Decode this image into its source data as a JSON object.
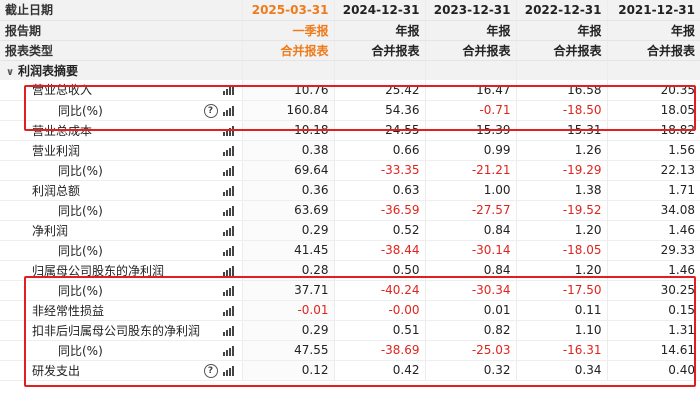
{
  "header": {
    "rows": [
      {
        "label": "截止日期",
        "values": [
          "2025-03-31",
          "2024-12-31",
          "2023-12-31",
          "2022-12-31",
          "2021-12-31"
        ]
      },
      {
        "label": "报告期",
        "values": [
          "一季报",
          "年报",
          "年报",
          "年报",
          "年报"
        ]
      },
      {
        "label": "报表类型",
        "values": [
          "合并报表",
          "合并报表",
          "合并报表",
          "合并报表",
          "合并报表"
        ]
      }
    ]
  },
  "section": {
    "label": "利润表摘要",
    "expand_icon": "chevron-down-icon"
  },
  "rows": [
    {
      "label": "营业总收入",
      "values": [
        "10.76",
        "25.42",
        "16.47",
        "16.58",
        "20.35"
      ],
      "highlight_group": 1
    },
    {
      "label": "同比(%)",
      "values": [
        "160.84",
        "54.36",
        "-0.71",
        "-18.50",
        "18.05"
      ],
      "help": true,
      "highlight_group": 1
    },
    {
      "label": "营业总成本",
      "values": [
        "10.18",
        "24.55",
        "15.39",
        "15.31",
        "18.82"
      ]
    },
    {
      "label": "营业利润",
      "values": [
        "0.38",
        "0.66",
        "0.99",
        "1.26",
        "1.56"
      ]
    },
    {
      "label": "同比(%)",
      "values": [
        "69.64",
        "-33.35",
        "-21.21",
        "-19.29",
        "22.13"
      ]
    },
    {
      "label": "利润总额",
      "values": [
        "0.36",
        "0.63",
        "1.00",
        "1.38",
        "1.71"
      ]
    },
    {
      "label": "同比(%)",
      "values": [
        "63.69",
        "-36.59",
        "-27.57",
        "-19.52",
        "34.08"
      ]
    },
    {
      "label": "净利润",
      "values": [
        "0.29",
        "0.52",
        "0.84",
        "1.20",
        "1.46"
      ]
    },
    {
      "label": "同比(%)",
      "values": [
        "41.45",
        "-38.44",
        "-30.14",
        "-18.05",
        "29.33"
      ]
    },
    {
      "label": "归属母公司股东的净利润",
      "values": [
        "0.28",
        "0.50",
        "0.84",
        "1.20",
        "1.46"
      ],
      "highlight_group": 2
    },
    {
      "label": "同比(%)",
      "values": [
        "37.71",
        "-40.24",
        "-30.34",
        "-17.50",
        "30.25"
      ],
      "highlight_group": 2
    },
    {
      "label": "非经常性损益",
      "values": [
        "-0.01",
        "-0.00",
        "0.01",
        "0.11",
        "0.15"
      ],
      "highlight_group": 2
    },
    {
      "label": "扣非后归属母公司股东的净利润",
      "values": [
        "0.29",
        "0.51",
        "0.82",
        "1.10",
        "1.31"
      ],
      "highlight_group": 2
    },
    {
      "label": "同比(%)",
      "values": [
        "47.55",
        "-38.69",
        "-25.03",
        "-16.31",
        "14.61"
      ],
      "highlight_group": 2
    },
    {
      "label": "研发支出",
      "values": [
        "0.12",
        "0.42",
        "0.32",
        "0.34",
        "0.40"
      ],
      "help": true
    }
  ],
  "icons": {
    "chart": "bar-chart-icon",
    "help": "help-circle-icon"
  },
  "colors": {
    "current_period": "#ee7b1c",
    "negative": "#e0241d",
    "highlight_box": "#e02020",
    "header_bg": "#f2f2f2"
  }
}
